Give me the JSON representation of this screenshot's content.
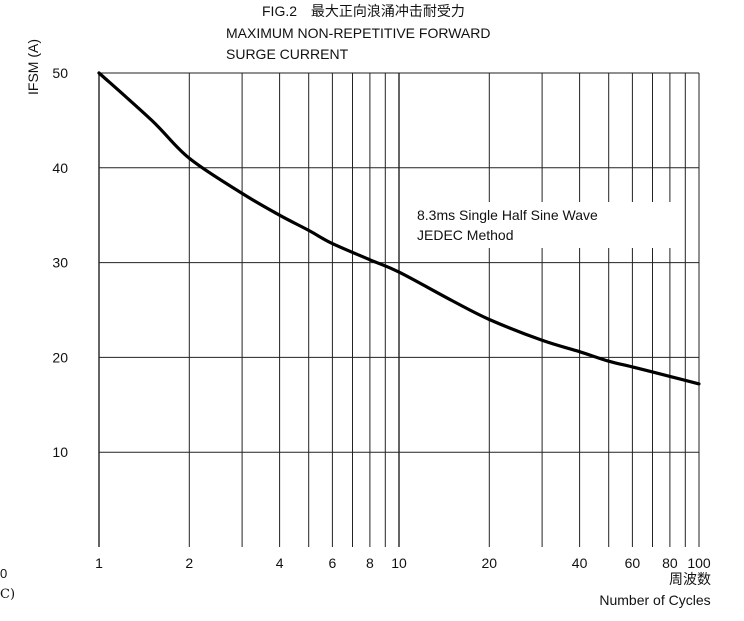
{
  "chart_data": {
    "type": "line",
    "title_line1": "FIG.2",
    "title_line1_cn": "最大正向浪涌冲击耐受力",
    "title_line2": "MAXIMUM NON-REPETITIVE FORWARD",
    "title_line3": "SURGE CURRENT",
    "ylabel": "IFSM (A)",
    "xlabel_cn": "周波数",
    "xlabel": "Number of Cycles",
    "x_scale": "log",
    "xlim": [
      1,
      100
    ],
    "ylim": [
      0,
      50
    ],
    "x_ticks": [
      1,
      2,
      4,
      6,
      8,
      10,
      20,
      40,
      60,
      80,
      100
    ],
    "x_tick_labels": [
      "1",
      "2",
      "4",
      "6",
      "8",
      "10",
      "20",
      "40",
      "60",
      "80",
      "100"
    ],
    "y_ticks": [
      10,
      20,
      30,
      40,
      50
    ],
    "y_tick_labels": [
      "10",
      "20",
      "30",
      "40",
      "50"
    ],
    "grid": true,
    "annotation_line1": "8.3ms Single Half Sine Wave",
    "annotation_line2": "JEDEC Method",
    "edge_fragment_1": "0",
    "edge_fragment_2": "C)",
    "series": [
      {
        "x": [
          1,
          1.5,
          2,
          3,
          4,
          5,
          6,
          8,
          10,
          15,
          20,
          30,
          40,
          50,
          60,
          80,
          100
        ],
        "y": [
          50,
          45,
          41,
          37.3,
          35,
          33.4,
          32,
          30.3,
          29,
          26,
          24,
          21.8,
          20.6,
          19.6,
          19,
          18,
          17.2
        ]
      }
    ]
  }
}
